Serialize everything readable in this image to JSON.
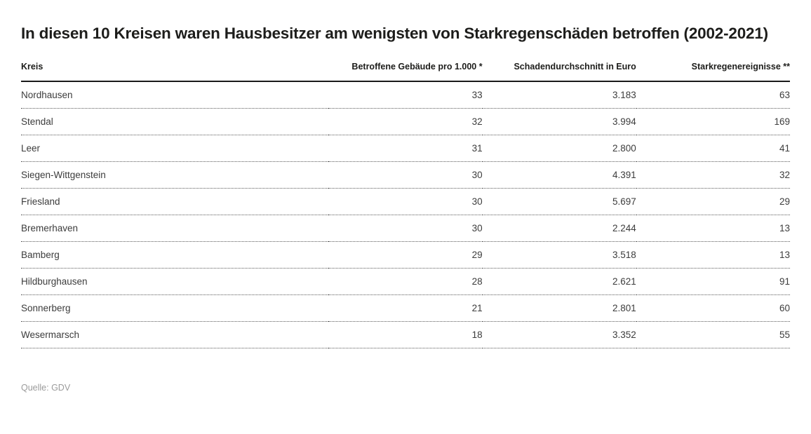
{
  "title": "In diesen 10 Kreisen waren Hausbesitzer am wenigsten von Starkregenschäden betroffen (2002-2021)",
  "source": "Quelle: GDV",
  "chart_data": {
    "type": "table",
    "title": "In diesen 10 Kreisen waren Hausbesitzer am wenigsten von Starkregenschäden betroffen (2002-2021)",
    "columns": [
      "Kreis",
      "Betroffene Gebäude pro 1.000 *",
      "Schadendurchschnitt in Euro",
      "Starkregenereignisse **"
    ],
    "rows": [
      {
        "kreis": "Nordhausen",
        "betroffene_gebaeude_pro_1000": "33",
        "schadendurchschnitt_euro": "3.183",
        "starkregenereignisse": "63"
      },
      {
        "kreis": "Stendal",
        "betroffene_gebaeude_pro_1000": "32",
        "schadendurchschnitt_euro": "3.994",
        "starkregenereignisse": "169"
      },
      {
        "kreis": "Leer",
        "betroffene_gebaeude_pro_1000": "31",
        "schadendurchschnitt_euro": "2.800",
        "starkregenereignisse": "41"
      },
      {
        "kreis": "Siegen-Wittgenstein",
        "betroffene_gebaeude_pro_1000": "30",
        "schadendurchschnitt_euro": "4.391",
        "starkregenereignisse": "32"
      },
      {
        "kreis": "Friesland",
        "betroffene_gebaeude_pro_1000": "30",
        "schadendurchschnitt_euro": "5.697",
        "starkregenereignisse": "29"
      },
      {
        "kreis": "Bremerhaven",
        "betroffene_gebaeude_pro_1000": "30",
        "schadendurchschnitt_euro": "2.244",
        "starkregenereignisse": "13"
      },
      {
        "kreis": "Bamberg",
        "betroffene_gebaeude_pro_1000": "29",
        "schadendurchschnitt_euro": "3.518",
        "starkregenereignisse": "13"
      },
      {
        "kreis": "Hildburghausen",
        "betroffene_gebaeude_pro_1000": "28",
        "schadendurchschnitt_euro": "2.621",
        "starkregenereignisse": "91"
      },
      {
        "kreis": "Sonnerberg",
        "betroffene_gebaeude_pro_1000": "21",
        "schadendurchschnitt_euro": "2.801",
        "starkregenereignisse": "60"
      },
      {
        "kreis": "Wesermarsch",
        "betroffene_gebaeude_pro_1000": "18",
        "schadendurchschnitt_euro": "3.352",
        "starkregenereignisse": "55"
      }
    ],
    "layout": {
      "first_column_align": "left",
      "value_columns_align": "right",
      "header_rule": "solid",
      "row_rule": "dotted"
    }
  }
}
